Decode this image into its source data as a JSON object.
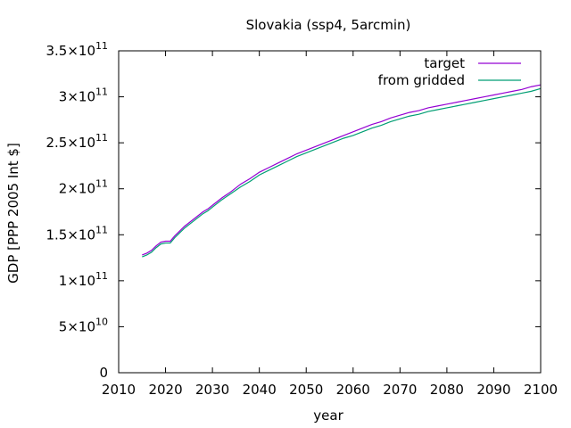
{
  "chart_data": {
    "type": "line",
    "title": "Slovakia (ssp4, 5arcmin)",
    "xlabel": "year",
    "ylabel": "GDP [PPP 2005 Int $]",
    "xlim": [
      2010,
      2100
    ],
    "ylim": [
      0,
      350000000000
    ],
    "grid": false,
    "legend_position": "top-right",
    "x_ticks": [
      {
        "value": 2010,
        "label": "2010"
      },
      {
        "value": 2020,
        "label": "2020"
      },
      {
        "value": 2030,
        "label": "2030"
      },
      {
        "value": 2040,
        "label": "2040"
      },
      {
        "value": 2050,
        "label": "2050"
      },
      {
        "value": 2060,
        "label": "2060"
      },
      {
        "value": 2070,
        "label": "2070"
      },
      {
        "value": 2080,
        "label": "2080"
      },
      {
        "value": 2090,
        "label": "2090"
      },
      {
        "value": 2100,
        "label": "2100"
      }
    ],
    "y_ticks": [
      {
        "value": 0,
        "mant": "0",
        "exp": ""
      },
      {
        "value": 50000000000,
        "mant": "5×10",
        "exp": "10"
      },
      {
        "value": 100000000000,
        "mant": "1×10",
        "exp": "11"
      },
      {
        "value": 150000000000,
        "mant": "1.5×10",
        "exp": "11"
      },
      {
        "value": 200000000000,
        "mant": "2×10",
        "exp": "11"
      },
      {
        "value": 250000000000,
        "mant": "2.5×10",
        "exp": "11"
      },
      {
        "value": 300000000000,
        "mant": "3×10",
        "exp": "11"
      },
      {
        "value": 350000000000,
        "mant": "3.5×10",
        "exp": "11"
      }
    ],
    "x": [
      2015,
      2016,
      2017,
      2018,
      2019,
      2020,
      2021,
      2022,
      2023,
      2024,
      2025,
      2026,
      2027,
      2028,
      2029,
      2030,
      2032,
      2034,
      2036,
      2038,
      2040,
      2042,
      2044,
      2046,
      2048,
      2050,
      2052,
      2054,
      2056,
      2058,
      2060,
      2062,
      2064,
      2066,
      2068,
      2070,
      2072,
      2074,
      2076,
      2078,
      2080,
      2082,
      2084,
      2086,
      2088,
      2090,
      2092,
      2094,
      2096,
      2098,
      2100
    ],
    "series": [
      {
        "name": "target",
        "color": "#9400d3",
        "values": [
          128000000000.0,
          130000000000.0,
          133000000000.0,
          138000000000.0,
          142000000000.0,
          143000000000.0,
          143000000000.0,
          149000000000.0,
          154000000000.0,
          159000000000.0,
          163000000000.0,
          167000000000.0,
          171000000000.0,
          175000000000.0,
          178000000000.0,
          182000000000.0,
          190000000000.0,
          197000000000.0,
          205000000000.0,
          211000000000.0,
          218000000000.0,
          223000000000.0,
          228000000000.0,
          233000000000.0,
          238000000000.0,
          242000000000.0,
          246000000000.0,
          250000000000.0,
          254000000000.0,
          258000000000.0,
          262000000000.0,
          266000000000.0,
          270000000000.0,
          273000000000.0,
          277000000000.0,
          280000000000.0,
          283000000000.0,
          285000000000.0,
          288000000000.0,
          290000000000.0,
          292000000000.0,
          294000000000.0,
          296000000000.0,
          298000000000.0,
          300000000000.0,
          302000000000.0,
          304000000000.0,
          306000000000.0,
          308000000000.0,
          311000000000.0,
          313000000000.0
        ]
      },
      {
        "name": "from gridded",
        "color": "#009e73",
        "values": [
          126000000000.0,
          128000000000.0,
          131000000000.0,
          136000000000.0,
          140000000000.0,
          141000000000.0,
          141000000000.0,
          147000000000.0,
          152000000000.0,
          157000000000.0,
          161000000000.0,
          165000000000.0,
          169000000000.0,
          173000000000.0,
          176000000000.0,
          180000000000.0,
          188000000000.0,
          195000000000.0,
          202000000000.0,
          208000000000.0,
          215000000000.0,
          220000000000.0,
          225000000000.0,
          230000000000.0,
          235000000000.0,
          239000000000.0,
          243000000000.0,
          247000000000.0,
          251000000000.0,
          255000000000.0,
          258000000000.0,
          262000000000.0,
          266000000000.0,
          269000000000.0,
          273000000000.0,
          276000000000.0,
          279000000000.0,
          281000000000.0,
          284000000000.0,
          286000000000.0,
          288000000000.0,
          290000000000.0,
          292000000000.0,
          294000000000.0,
          296000000000.0,
          298000000000.0,
          300000000000.0,
          302000000000.0,
          304000000000.0,
          306000000000.0,
          309000000000.0
        ]
      }
    ]
  }
}
